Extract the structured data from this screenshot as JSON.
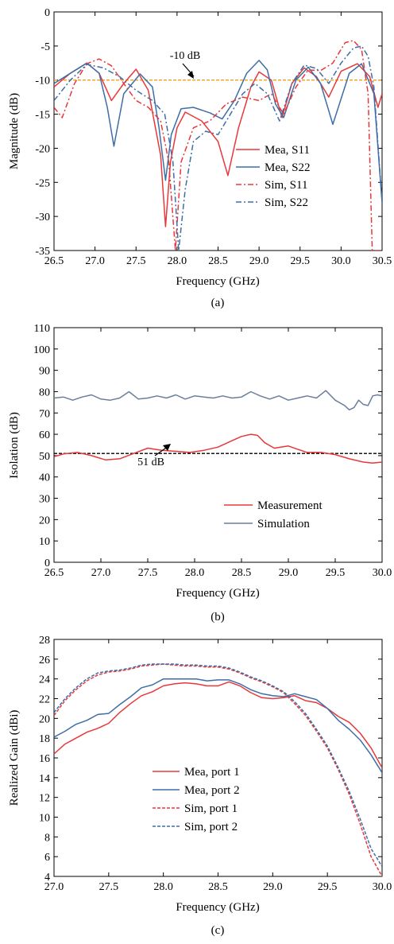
{
  "chart_data": [
    {
      "type": "line",
      "caption": "(a)",
      "xlabel": "Frequency (GHz)",
      "ylabel": "Magnitude (dB)",
      "xlim": [
        26.5,
        30.5
      ],
      "ylim": [
        -35,
        0
      ],
      "xticks": [
        26.5,
        27.0,
        27.5,
        28.0,
        28.5,
        29.0,
        29.5,
        30.0,
        30.5
      ],
      "yticks": [
        0,
        -5,
        -10,
        -15,
        -20,
        -25,
        -30,
        -35
      ],
      "tick_decimals_x": 1,
      "tick_decimals_y": 0,
      "legend_position": "right",
      "reference_line": {
        "y": -10,
        "color": "#f0a020",
        "label": "-10 dB"
      },
      "series": [
        {
          "name": "Mea, S11",
          "color": "#e8383a",
          "dash": "solid",
          "x": [
            26.5,
            26.7,
            26.9,
            27.05,
            27.2,
            27.35,
            27.5,
            27.65,
            27.8,
            27.86,
            27.92,
            28.0,
            28.1,
            28.3,
            28.5,
            28.62,
            28.75,
            28.9,
            29.0,
            29.15,
            29.28,
            29.4,
            29.55,
            29.7,
            29.85,
            30.0,
            30.2,
            30.35,
            30.45,
            30.5
          ],
          "y": [
            -11.0,
            -9.0,
            -7.5,
            -9.0,
            -13.0,
            -10.5,
            -8.4,
            -11.5,
            -21.0,
            -31.5,
            -22.0,
            -17.0,
            -14.7,
            -16.0,
            -19.0,
            -24.0,
            -17.0,
            -11.0,
            -8.8,
            -10.0,
            -15.5,
            -10.5,
            -8.2,
            -9.5,
            -12.5,
            -8.7,
            -7.6,
            -9.5,
            -14.0,
            -12.0
          ]
        },
        {
          "name": "Mea, S22",
          "color": "#3d6ea8",
          "dash": "solid",
          "x": [
            26.5,
            26.7,
            26.9,
            27.05,
            27.15,
            27.23,
            27.35,
            27.55,
            27.7,
            27.78,
            27.86,
            27.93,
            28.05,
            28.2,
            28.4,
            28.55,
            28.7,
            28.85,
            29.0,
            29.1,
            29.2,
            29.3,
            29.45,
            29.6,
            29.75,
            29.9,
            30.1,
            30.25,
            30.4,
            30.5
          ],
          "y": [
            -10.5,
            -9.0,
            -7.5,
            -9.0,
            -14.0,
            -19.7,
            -12.0,
            -9.1,
            -11.0,
            -17.0,
            -24.7,
            -18.0,
            -14.2,
            -14.0,
            -14.8,
            -15.7,
            -13.0,
            -9.0,
            -7.1,
            -8.5,
            -13.5,
            -15.5,
            -10.0,
            -8.1,
            -10.5,
            -16.5,
            -9.0,
            -7.6,
            -12.0,
            -28.0
          ]
        },
        {
          "name": "Sim, S11",
          "color": "#e8383a",
          "dash": "dashdot",
          "x": [
            26.5,
            26.6,
            26.75,
            26.9,
            27.05,
            27.2,
            27.35,
            27.5,
            27.65,
            27.8,
            27.9,
            27.98,
            28.05,
            28.2,
            28.4,
            28.6,
            28.8,
            29.0,
            29.15,
            29.3,
            29.45,
            29.6,
            29.75,
            29.9,
            30.05,
            30.15,
            30.25,
            30.33,
            30.38,
            30.5
          ],
          "y": [
            -14.0,
            -15.5,
            -10.5,
            -7.6,
            -6.9,
            -7.9,
            -10.5,
            -13.0,
            -14.0,
            -16.0,
            -22.0,
            -35.0,
            -22.0,
            -17.0,
            -16.0,
            -13.5,
            -12.5,
            -13.0,
            -12.0,
            -15.0,
            -11.0,
            -8.5,
            -8.6,
            -7.5,
            -4.5,
            -4.2,
            -5.5,
            -12.0,
            -35.0,
            -35.0
          ]
        },
        {
          "name": "Sim, S22",
          "color": "#3d6ea8",
          "dash": "dashdot",
          "x": [
            26.5,
            26.7,
            26.9,
            27.1,
            27.3,
            27.5,
            27.7,
            27.85,
            27.95,
            28.02,
            28.1,
            28.2,
            28.35,
            28.5,
            28.65,
            28.8,
            28.95,
            29.1,
            29.25,
            29.4,
            29.55,
            29.7,
            29.85,
            30.0,
            30.15,
            30.25,
            30.33,
            30.4,
            30.5
          ],
          "y": [
            -13.0,
            -10.0,
            -7.7,
            -8.2,
            -9.5,
            -11.5,
            -13.0,
            -15.0,
            -22.0,
            -35.0,
            -26.0,
            -19.0,
            -17.5,
            -18.0,
            -15.0,
            -12.0,
            -10.5,
            -12.0,
            -16.0,
            -10.5,
            -7.8,
            -8.3,
            -10.5,
            -7.5,
            -5.3,
            -5.0,
            -6.5,
            -11.0,
            -28.0
          ]
        }
      ]
    },
    {
      "type": "line",
      "caption": "(b)",
      "xlabel": "Frequency (GHz)",
      "ylabel": "Isolation (dB)",
      "xlim": [
        26.5,
        30.0
      ],
      "ylim": [
        0,
        110
      ],
      "xticks": [
        26.5,
        27.0,
        27.5,
        28.0,
        28.5,
        29.0,
        29.5,
        30.0
      ],
      "yticks": [
        0,
        10,
        20,
        30,
        40,
        50,
        60,
        70,
        80,
        90,
        100,
        110
      ],
      "tick_decimals_x": 1,
      "tick_decimals_y": 0,
      "legend_position": "bottom-right",
      "reference_line": {
        "y": 51,
        "color": "#000000",
        "label": "51 dB"
      },
      "series": [
        {
          "name": "Measurement",
          "color": "#e8383a",
          "dash": "solid",
          "x": [
            26.5,
            26.6,
            26.75,
            26.9,
            27.05,
            27.2,
            27.35,
            27.5,
            27.65,
            27.8,
            27.95,
            28.1,
            28.25,
            28.4,
            28.5,
            28.6,
            28.67,
            28.75,
            28.85,
            29.0,
            29.1,
            29.2,
            29.35,
            29.5,
            29.65,
            29.8,
            29.9,
            30.0
          ],
          "y": [
            49.5,
            50.8,
            51.5,
            50.0,
            48.0,
            48.5,
            51.0,
            53.5,
            52.5,
            52.0,
            51.5,
            52.5,
            54.0,
            57.0,
            59.0,
            60.0,
            59.5,
            56.0,
            53.5,
            54.5,
            53.0,
            51.5,
            51.5,
            50.5,
            48.5,
            47.0,
            46.5,
            47.0
          ]
        },
        {
          "name": "Simulation",
          "color": "#6a7f9a",
          "dash": "solid",
          "x": [
            26.5,
            26.6,
            26.7,
            26.8,
            26.9,
            27.0,
            27.1,
            27.2,
            27.3,
            27.4,
            27.5,
            27.6,
            27.7,
            27.8,
            27.9,
            28.0,
            28.1,
            28.2,
            28.3,
            28.4,
            28.5,
            28.6,
            28.7,
            28.8,
            28.9,
            29.0,
            29.1,
            29.2,
            29.3,
            29.4,
            29.5,
            29.6,
            29.65,
            29.7,
            29.75,
            29.8,
            29.85,
            29.9,
            29.95,
            30.0
          ],
          "y": [
            77.0,
            77.5,
            76.0,
            77.5,
            78.5,
            76.5,
            76.0,
            77.0,
            80.0,
            76.5,
            77.0,
            78.0,
            77.0,
            78.5,
            76.5,
            78.0,
            77.5,
            77.0,
            78.0,
            77.0,
            77.5,
            80.0,
            78.0,
            76.5,
            78.0,
            76.0,
            77.0,
            78.0,
            77.0,
            80.5,
            76.0,
            73.5,
            71.5,
            72.5,
            76.0,
            74.0,
            73.5,
            78.0,
            78.5,
            78.0
          ]
        }
      ]
    },
    {
      "type": "line",
      "caption": "(c)",
      "xlabel": "Frequency (GHz)",
      "ylabel": "Realized Gain (dBi)",
      "xlim": [
        27.0,
        30.0
      ],
      "ylim": [
        4,
        28
      ],
      "xticks": [
        27.0,
        27.5,
        28.0,
        28.5,
        29.0,
        29.5,
        30.0
      ],
      "yticks": [
        4,
        6,
        8,
        10,
        12,
        14,
        16,
        18,
        20,
        22,
        24,
        26,
        28
      ],
      "tick_decimals_x": 1,
      "tick_decimals_y": 0,
      "legend_position": "center",
      "series": [
        {
          "name": "Mea, port 1",
          "color": "#e8383a",
          "dash": "solid",
          "x": [
            27.0,
            27.1,
            27.2,
            27.3,
            27.4,
            27.5,
            27.6,
            27.7,
            27.8,
            27.9,
            28.0,
            28.1,
            28.2,
            28.3,
            28.4,
            28.5,
            28.6,
            28.7,
            28.8,
            28.9,
            29.0,
            29.1,
            29.2,
            29.3,
            29.4,
            29.5,
            29.6,
            29.7,
            29.8,
            29.9,
            30.0
          ],
          "y": [
            16.4,
            17.4,
            18.0,
            18.6,
            19.0,
            19.5,
            20.6,
            21.5,
            22.3,
            22.7,
            23.3,
            23.5,
            23.6,
            23.5,
            23.3,
            23.3,
            23.7,
            23.3,
            22.6,
            22.1,
            22.0,
            22.1,
            22.3,
            21.8,
            21.6,
            21.0,
            20.2,
            19.6,
            18.5,
            17.0,
            15.0
          ]
        },
        {
          "name": "Mea, port 2",
          "color": "#3d6ea8",
          "dash": "solid",
          "x": [
            27.0,
            27.1,
            27.2,
            27.3,
            27.4,
            27.5,
            27.6,
            27.7,
            27.8,
            27.9,
            28.0,
            28.1,
            28.2,
            28.3,
            28.4,
            28.5,
            28.6,
            28.7,
            28.8,
            28.9,
            29.0,
            29.1,
            29.2,
            29.3,
            29.4,
            29.5,
            29.6,
            29.7,
            29.8,
            29.9,
            30.0
          ],
          "y": [
            18.1,
            18.7,
            19.4,
            19.8,
            20.4,
            20.5,
            21.4,
            22.2,
            23.1,
            23.4,
            24.0,
            24.0,
            24.0,
            24.0,
            23.8,
            23.9,
            23.9,
            23.5,
            22.9,
            22.5,
            22.3,
            22.2,
            22.5,
            22.2,
            21.9,
            21.0,
            19.8,
            18.9,
            17.8,
            16.3,
            14.5
          ]
        },
        {
          "name": "Sim, port 1",
          "color": "#e8383a",
          "dash": "dashed",
          "x": [
            27.0,
            27.1,
            27.2,
            27.3,
            27.4,
            27.5,
            27.6,
            27.7,
            27.8,
            27.9,
            28.0,
            28.1,
            28.2,
            28.3,
            28.4,
            28.5,
            28.6,
            28.7,
            28.8,
            28.9,
            29.0,
            29.1,
            29.2,
            29.3,
            29.4,
            29.5,
            29.6,
            29.7,
            29.8,
            29.9,
            30.0
          ],
          "y": [
            20.3,
            21.8,
            22.9,
            23.8,
            24.4,
            24.7,
            24.8,
            25.0,
            25.3,
            25.4,
            25.5,
            25.4,
            25.3,
            25.3,
            25.2,
            25.2,
            25.0,
            24.6,
            24.1,
            23.7,
            23.2,
            22.6,
            21.5,
            20.3,
            18.7,
            17.0,
            14.8,
            12.3,
            9.3,
            6.0,
            4.0
          ]
        },
        {
          "name": "Sim, port 2",
          "color": "#3d6ea8",
          "dash": "dashed",
          "x": [
            27.0,
            27.1,
            27.2,
            27.3,
            27.4,
            27.5,
            27.6,
            27.7,
            27.8,
            27.9,
            28.0,
            28.1,
            28.2,
            28.3,
            28.4,
            28.5,
            28.6,
            28.7,
            28.8,
            28.9,
            29.0,
            29.1,
            29.2,
            29.3,
            29.4,
            29.5,
            29.6,
            29.7,
            29.8,
            29.9,
            30.0
          ],
          "y": [
            20.6,
            22.0,
            23.1,
            24.0,
            24.6,
            24.8,
            24.9,
            25.1,
            25.4,
            25.5,
            25.5,
            25.5,
            25.4,
            25.4,
            25.3,
            25.3,
            25.1,
            24.7,
            24.2,
            23.8,
            23.3,
            22.7,
            21.7,
            20.5,
            18.9,
            17.2,
            15.0,
            12.6,
            9.8,
            6.8,
            5.0
          ]
        }
      ]
    }
  ]
}
